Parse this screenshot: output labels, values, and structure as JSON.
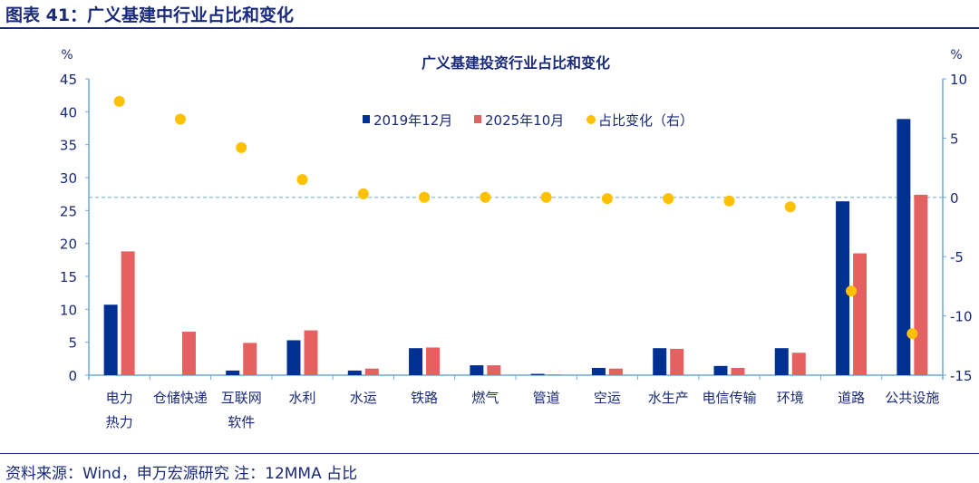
{
  "figure_title": "图表 41：广义基建中行业占比和变化",
  "source_note": "资料来源：Wind，申万宏源研究 注：12MMA 占比",
  "chart_data": {
    "type": "bar",
    "title": "广义基建投资行业占比和变化",
    "ylabel_left": "%",
    "ylabel_right": "%",
    "ylim_left": [
      0,
      45
    ],
    "yticks_left": [
      0,
      5,
      10,
      15,
      20,
      25,
      30,
      35,
      40,
      45
    ],
    "ylim_right": [
      -15,
      10
    ],
    "yticks_right": [
      -15,
      -10,
      -5,
      0,
      5,
      10
    ],
    "legend_position": "top-center",
    "grid": false,
    "categories": [
      [
        "电力",
        "热力"
      ],
      [
        "仓储快递"
      ],
      [
        "互联网",
        "软件"
      ],
      [
        "水利"
      ],
      [
        "水运"
      ],
      [
        "铁路"
      ],
      [
        "燃气"
      ],
      [
        "管道"
      ],
      [
        "空运"
      ],
      [
        "水生产"
      ],
      [
        "电信传输"
      ],
      [
        "环境"
      ],
      [
        "道路"
      ],
      [
        "公共设施"
      ]
    ],
    "series": [
      {
        "name": "2019年12月",
        "type": "bar",
        "axis": "left",
        "color": "#003192",
        "values": [
          10.7,
          0,
          0.7,
          5.3,
          0.7,
          4.1,
          1.5,
          0.2,
          1.1,
          4.1,
          1.4,
          4.1,
          26.4,
          38.9
        ]
      },
      {
        "name": "2025年10月",
        "type": "bar",
        "axis": "left",
        "color": "#e56060",
        "values": [
          18.8,
          6.6,
          4.9,
          6.8,
          1.0,
          4.2,
          1.5,
          0.1,
          1.0,
          4.0,
          1.1,
          3.4,
          18.5,
          27.4
        ]
      },
      {
        "name": "占比变化（右）",
        "type": "scatter",
        "axis": "right",
        "color": "#ffc000",
        "values": [
          8.1,
          6.6,
          4.2,
          1.5,
          0.3,
          0.0,
          0.0,
          0.0,
          -0.1,
          -0.1,
          -0.3,
          -0.8,
          -7.9,
          -11.5
        ]
      }
    ],
    "reference_line": {
      "axis": "right",
      "value": 0,
      "style": "dashed",
      "color": "#7fb2e5"
    }
  }
}
